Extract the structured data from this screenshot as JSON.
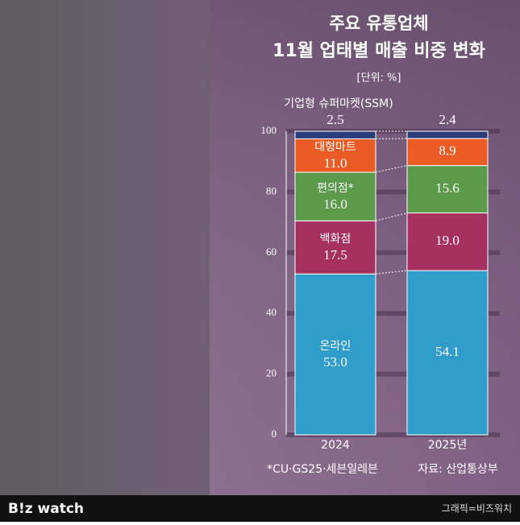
{
  "chart_data": {
    "type": "stacked_bar",
    "title": "주요 유통업체",
    "subtitle": "11월 업태별 매출 비중 변화",
    "unit": "[단위: %]",
    "categories": [
      "2024",
      "2025년"
    ],
    "series": [
      {
        "name": "온라인",
        "color": "#2f9cc9",
        "values": [
          53.0,
          54.1
        ],
        "value_labels": [
          "53.0",
          "54.1"
        ]
      },
      {
        "name": "백화점",
        "color": "#a6305f",
        "values": [
          17.5,
          19.0
        ],
        "value_labels": [
          "17.5",
          "19.0"
        ]
      },
      {
        "name": "편의점*",
        "color": "#5b9a4b",
        "values": [
          16.0,
          15.6
        ],
        "value_labels": [
          "16.0",
          "15.6"
        ]
      },
      {
        "name": "대형마트",
        "color": "#ea5b25",
        "values": [
          11.0,
          8.9
        ],
        "value_labels": [
          "11.0",
          "8.9"
        ]
      },
      {
        "name": "기업형 슈퍼마켓(SSM)",
        "color": "#2c3d7e",
        "values": [
          2.5,
          2.4
        ],
        "value_labels": [
          "2.5",
          "2.4"
        ]
      }
    ],
    "ylim": [
      0,
      100
    ],
    "yticks": [
      0,
      20,
      40,
      60,
      80,
      100
    ],
    "grid": true,
    "note": "*CU·GS25·세븐일레븐",
    "source": "자료: 산업통상부"
  },
  "footer": {
    "logo": "B!z watch",
    "credit": "그래픽=비즈워치"
  }
}
